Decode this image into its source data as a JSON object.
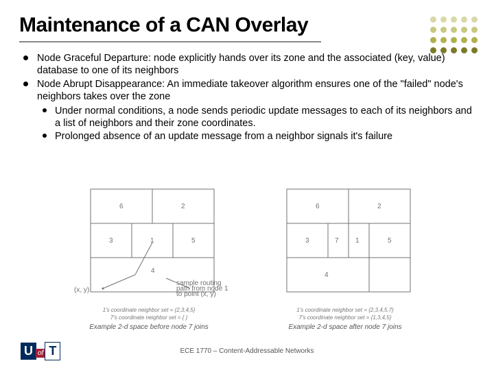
{
  "title": "Maintenance of a CAN Overlay",
  "bullets": [
    {
      "text": "Node Graceful Departure: node explicitly hands over its zone and the associated (key, value) database to one of its neighbors"
    },
    {
      "text": "Node Abrupt Disappearance: An immediate takeover algorithm ensures one of the \"failed\" node's neighbors takes over the zone",
      "sub": [
        "Under normal conditions, a node sends periodic update messages to each of its neighbors and a list of neighbors and their zone coordinates.",
        "Prolonged absence of an update message from a neighbor signals it's failure"
      ]
    }
  ],
  "diagrams": {
    "left": {
      "top_cells": [
        "6",
        "2"
      ],
      "mid_cells": [
        "3",
        "1",
        "5"
      ],
      "bottom_label": "4",
      "corner_label": "(x, y)",
      "neighbor_text": "1's coordinate neighbor set = {2,3,4,5}",
      "neighbor_text2": "7's coordinate neighbor set = { }",
      "caption": "Example 2-d space before node 7 joins",
      "sample_label": "sample routing\npath from node 1\nto point (x, y)"
    },
    "right": {
      "top_cells": [
        "6",
        "2"
      ],
      "mid_cells": [
        "3",
        "1",
        "5"
      ],
      "split_left": "7",
      "bottom_label": "4",
      "neighbor_text": "1's coordinate neighbor set = {2,3,4,5,7}",
      "neighbor_text2": "7's coordinate neighbor set = {1,3,4,5}",
      "caption": "Example 2-d space after node 7 joins"
    }
  },
  "footer": "ECE 1770 – Content-Addressable Networks",
  "deco_colors": [
    "#d8d8a8",
    "#d8d8a8",
    "#d8d8a8",
    "#d8d8a8",
    "#d8d8a8",
    "#c8c880",
    "#c8c880",
    "#c8c880",
    "#c8c880",
    "#c8c880",
    "#b0b050",
    "#b0b050",
    "#b0b050",
    "#b0b050",
    "#b0b050",
    "#7a7a2a",
    "#7a7a2a",
    "#7a7a2a",
    "#7a7a2a",
    "#7a7a2a"
  ],
  "title_underline_color": "#888888",
  "logo": {
    "u": "U",
    "of": "of",
    "t": "T"
  }
}
